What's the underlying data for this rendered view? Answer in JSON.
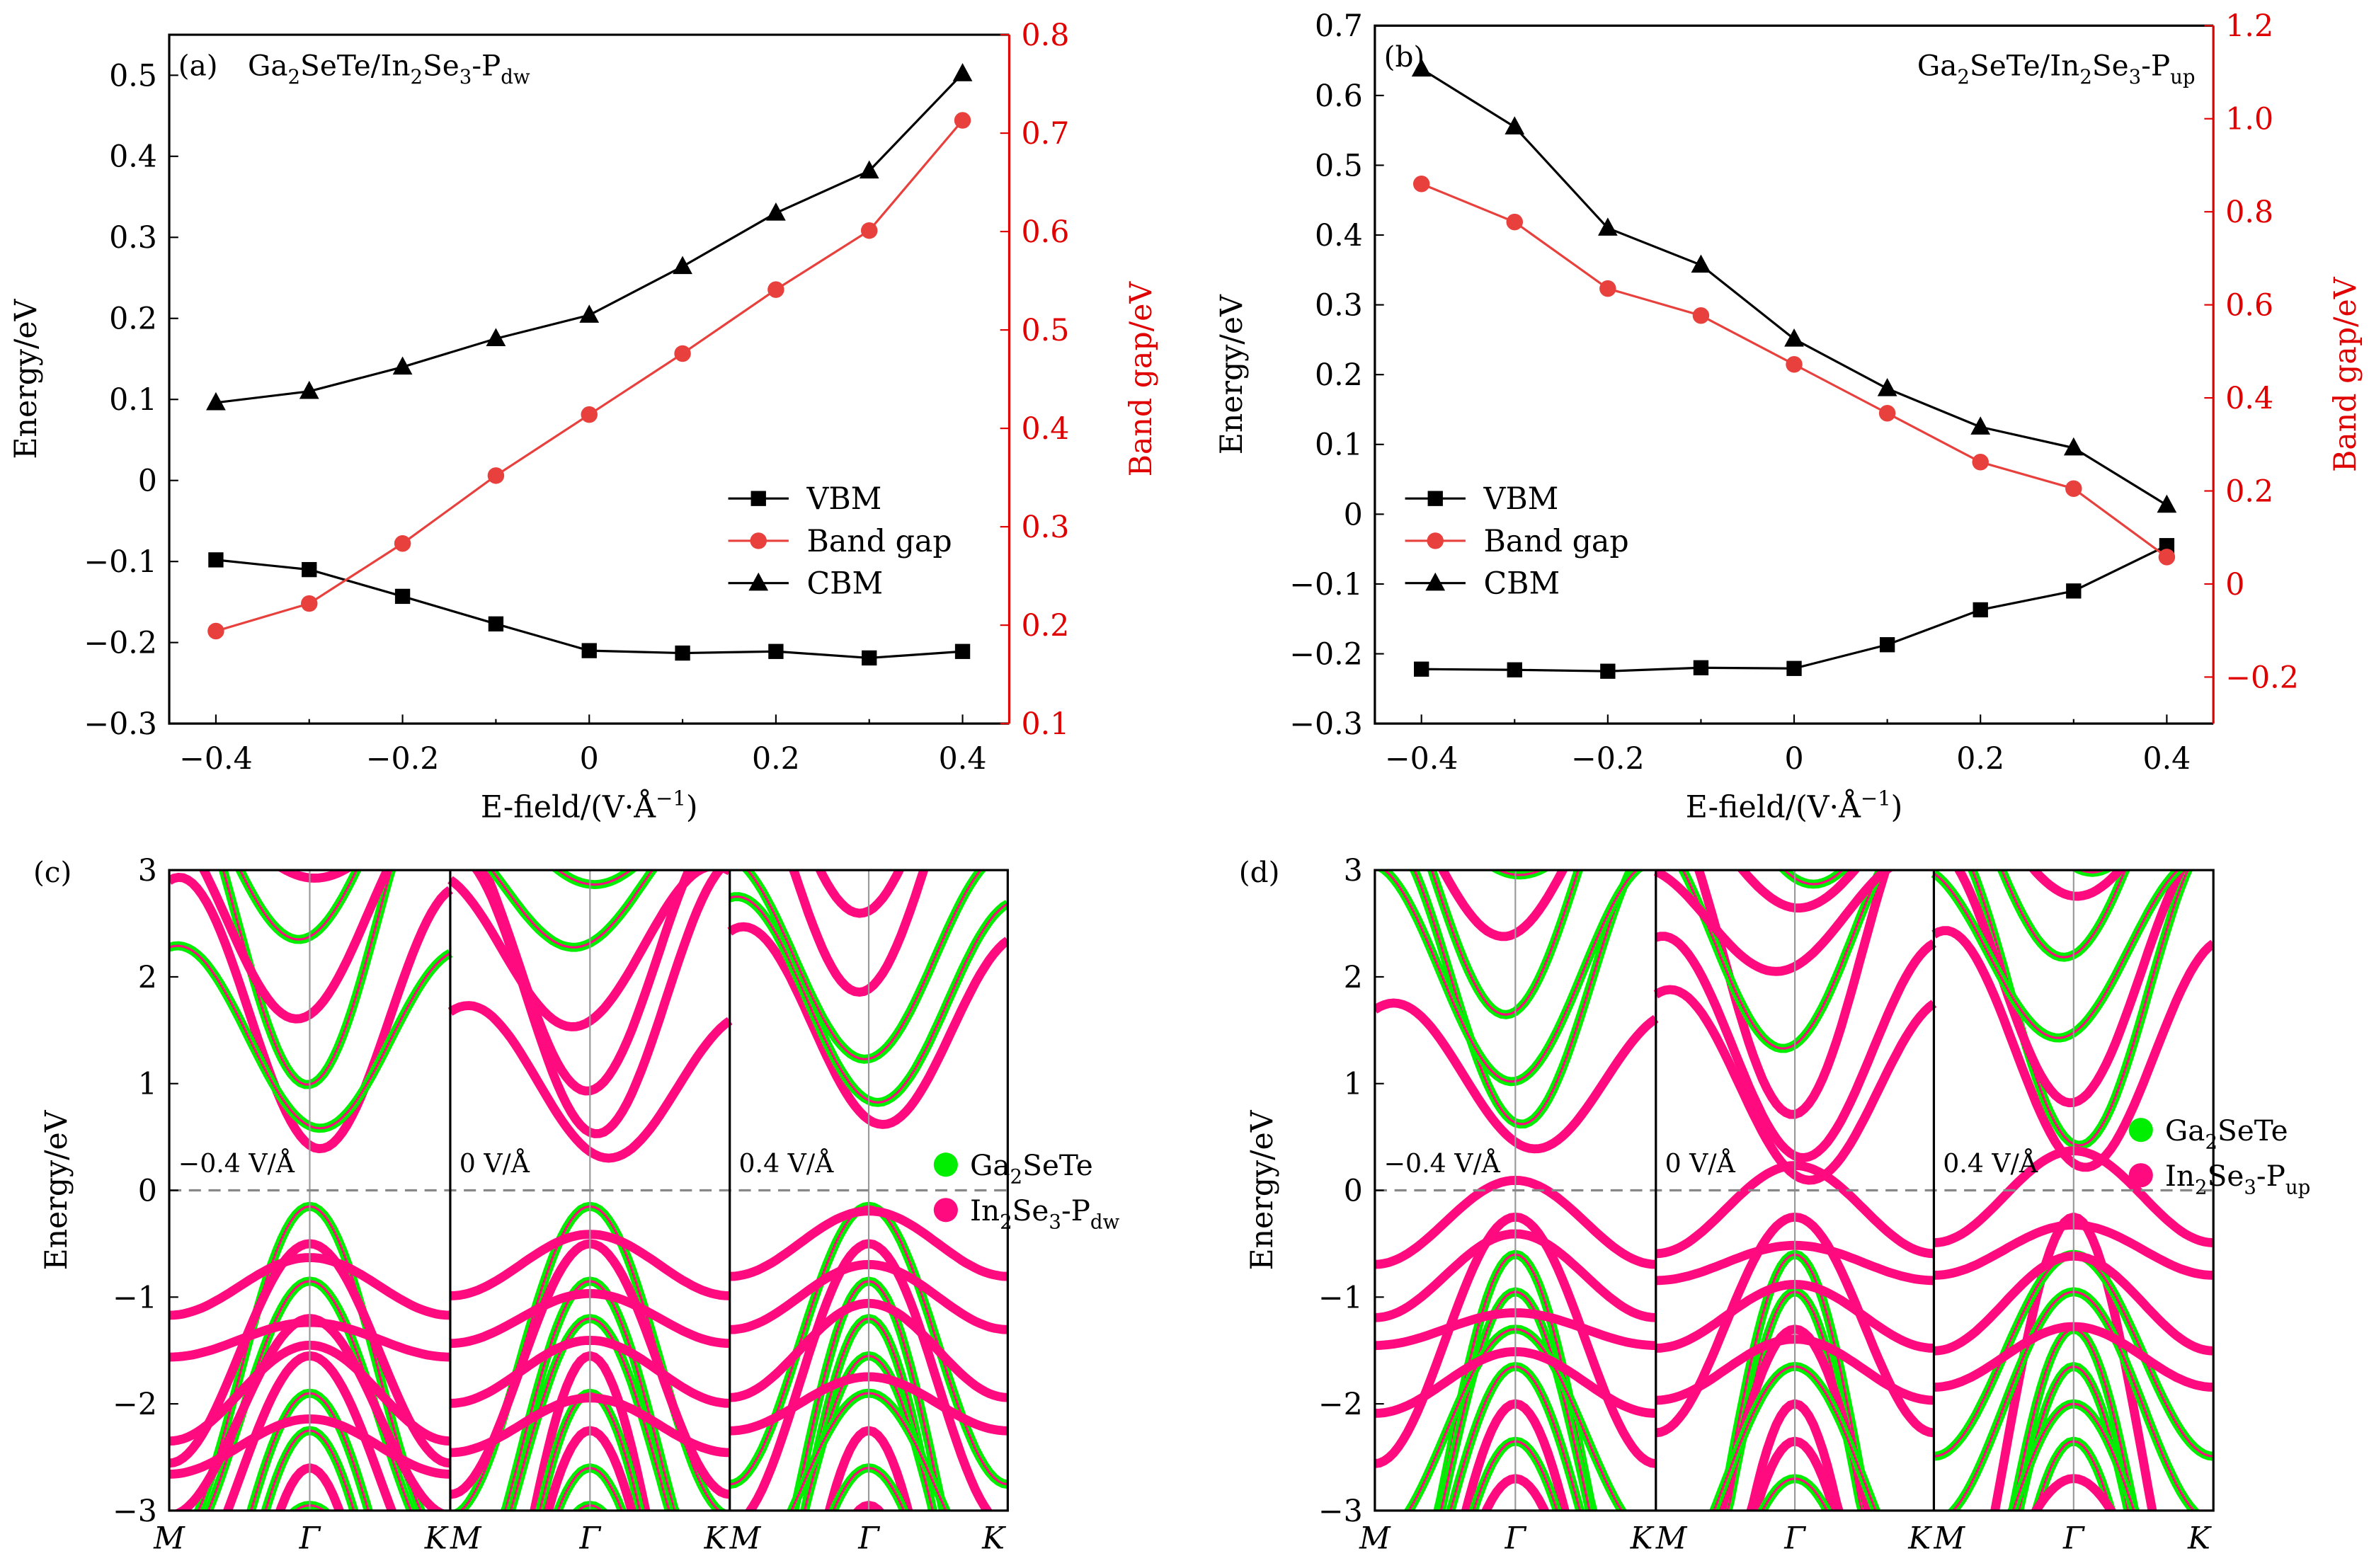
{
  "colors": {
    "vbm": "#000000",
    "cbm": "#000000",
    "band_gap": "#e8403c",
    "right_axis": "#e00000",
    "ga2sete": "#00ee00",
    "in2se3": "#ff0a7f",
    "fermi_line": "#888888"
  },
  "chart_data": [
    {
      "panel": "(a)",
      "type": "line",
      "title_parts": [
        {
          "t": "Ga"
        },
        {
          "t": "2",
          "sub": true
        },
        {
          "t": "SeTe/In"
        },
        {
          "t": "2",
          "sub": true
        },
        {
          "t": "Se"
        },
        {
          "t": "3",
          "sub": true
        },
        {
          "t": "-P"
        },
        {
          "t": "dw",
          "sub": true
        }
      ],
      "xlabel_parts": [
        {
          "t": "E-field/(V·Å"
        },
        {
          "t": "−1",
          "sup": true
        },
        {
          "t": ")"
        }
      ],
      "ylabel": "Energy/eV",
      "y2label": "Band gap/eV",
      "x": [
        -0.4,
        -0.3,
        -0.2,
        -0.1,
        0,
        0.1,
        0.2,
        0.3,
        0.4
      ],
      "xlim": [
        -0.45,
        0.45
      ],
      "ylim": [
        -0.3,
        0.55
      ],
      "y2lim": [
        0.1,
        0.8
      ],
      "xticks": [
        "−0.4",
        "−0.2",
        "0",
        "0.2",
        "0.4"
      ],
      "xtick_values": [
        -0.4,
        -0.2,
        0,
        0.2,
        0.4
      ],
      "yticks": [
        "−0.3",
        "−0.2",
        "−0.1",
        "0",
        "0.1",
        "0.2",
        "0.3",
        "0.4",
        "0.5"
      ],
      "ytick_values": [
        -0.3,
        -0.2,
        -0.1,
        0,
        0.1,
        0.2,
        0.3,
        0.4,
        0.5
      ],
      "y2ticks": [
        "0.1",
        "0.2",
        "0.3",
        "0.4",
        "0.5",
        "0.6",
        "0.7",
        "0.8"
      ],
      "y2tick_values": [
        0.1,
        0.2,
        0.3,
        0.4,
        0.5,
        0.6,
        0.7,
        0.8
      ],
      "legend_position": "center-right",
      "series": [
        {
          "name": "VBM",
          "axis": "left",
          "marker": "square",
          "values": [
            -0.098,
            -0.11,
            -0.143,
            -0.177,
            -0.21,
            -0.213,
            -0.211,
            -0.219,
            -0.211
          ]
        },
        {
          "name": "Band gap",
          "axis": "right",
          "marker": "circle",
          "values": [
            0.194,
            0.222,
            0.283,
            0.352,
            0.414,
            0.476,
            0.541,
            0.601,
            0.713
          ]
        },
        {
          "name": "CBM",
          "axis": "left",
          "marker": "triangle",
          "values": [
            0.096,
            0.11,
            0.14,
            0.175,
            0.204,
            0.264,
            0.33,
            0.382,
            0.502
          ]
        }
      ]
    },
    {
      "panel": "(b)",
      "type": "line",
      "title_parts": [
        {
          "t": "Ga"
        },
        {
          "t": "2",
          "sub": true
        },
        {
          "t": "SeTe/In"
        },
        {
          "t": "2",
          "sub": true
        },
        {
          "t": "Se"
        },
        {
          "t": "3",
          "sub": true
        },
        {
          "t": "-P"
        },
        {
          "t": "up",
          "sub": true
        }
      ],
      "xlabel_parts": [
        {
          "t": "E-field/(V·Å"
        },
        {
          "t": "−1",
          "sup": true
        },
        {
          "t": ")"
        }
      ],
      "ylabel": "Energy/eV",
      "y2label": "Band gap/eV",
      "x": [
        -0.4,
        -0.3,
        -0.2,
        -0.1,
        0,
        0.1,
        0.2,
        0.3,
        0.4
      ],
      "xlim": [
        -0.45,
        0.45
      ],
      "ylim": [
        -0.3,
        0.7
      ],
      "y2lim": [
        -0.3,
        1.2
      ],
      "xticks": [
        "−0.4",
        "−0.2",
        "0",
        "0.2",
        "0.4"
      ],
      "xtick_values": [
        -0.4,
        -0.2,
        0,
        0.2,
        0.4
      ],
      "yticks": [
        "−0.3",
        "−0.2",
        "−0.1",
        "0",
        "0.1",
        "0.2",
        "0.3",
        "0.4",
        "0.5",
        "0.6",
        "0.7"
      ],
      "ytick_values": [
        -0.3,
        -0.2,
        -0.1,
        0,
        0.1,
        0.2,
        0.3,
        0.4,
        0.5,
        0.6,
        0.7
      ],
      "y2ticks": [
        "−0.2",
        "0",
        "0.2",
        "0.4",
        "0.6",
        "0.8",
        "1.0",
        "1.2"
      ],
      "y2tick_values": [
        -0.2,
        0,
        0.2,
        0.4,
        0.6,
        0.8,
        1.0,
        1.2
      ],
      "legend_position": "center-left",
      "series": [
        {
          "name": "VBM",
          "axis": "left",
          "marker": "square",
          "values": [
            -0.222,
            -0.223,
            -0.225,
            -0.22,
            -0.221,
            -0.187,
            -0.137,
            -0.11,
            -0.045
          ]
        },
        {
          "name": "Band gap",
          "axis": "right",
          "marker": "circle",
          "values": [
            0.86,
            0.778,
            0.635,
            0.577,
            0.472,
            0.367,
            0.262,
            0.205,
            0.058
          ]
        },
        {
          "name": "CBM",
          "axis": "left",
          "marker": "triangle",
          "values": [
            0.638,
            0.555,
            0.41,
            0.357,
            0.251,
            0.18,
            0.125,
            0.095,
            0.013
          ]
        }
      ]
    },
    {
      "panel": "(c)",
      "type": "line",
      "ylabel": "Energy/eV",
      "ylim": [
        -3,
        3
      ],
      "yticks": [
        "−3",
        "−2",
        "−1",
        "0",
        "1",
        "2",
        "3"
      ],
      "ytick_values": [
        -3,
        -2,
        -1,
        0,
        1,
        2,
        3
      ],
      "kpath": [
        "M",
        "Γ",
        "K",
        "M",
        "Γ",
        "K",
        "M",
        "Γ",
        "K"
      ],
      "field_labels": [
        "−0.4 V/Å",
        "0 V/Å",
        "0.4 V/Å"
      ],
      "legend": [
        {
          "name_parts": [
            {
              "t": "Ga"
            },
            {
              "t": "2",
              "sub": true
            },
            {
              "t": "SeTe"
            }
          ],
          "color": "#00ee00"
        },
        {
          "name_parts": [
            {
              "t": "In"
            },
            {
              "t": "2",
              "sub": true
            },
            {
              "t": "Se"
            },
            {
              "t": "3",
              "sub": true
            },
            {
              "t": "-P"
            },
            {
              "t": "dw",
              "sub": true
            }
          ],
          "color": "#ff0a7f"
        }
      ],
      "legend_position": "right"
    },
    {
      "panel": "(d)",
      "type": "line",
      "ylabel": "Energy/eV",
      "ylim": [
        -3,
        3
      ],
      "yticks": [
        "−3",
        "−2",
        "−1",
        "0",
        "1",
        "2",
        "3"
      ],
      "ytick_values": [
        -3,
        -2,
        -1,
        0,
        1,
        2,
        3
      ],
      "kpath": [
        "M",
        "Γ",
        "K",
        "M",
        "Γ",
        "K",
        "M",
        "Γ",
        "K"
      ],
      "field_labels": [
        "−0.4 V/Å",
        "0 V/Å",
        "0.4 V/Å"
      ],
      "legend": [
        {
          "name_parts": [
            {
              "t": "Ga"
            },
            {
              "t": "2",
              "sub": true
            },
            {
              "t": "SeTe"
            }
          ],
          "color": "#00ee00"
        },
        {
          "name_parts": [
            {
              "t": "In"
            },
            {
              "t": "2",
              "sub": true
            },
            {
              "t": "Se"
            },
            {
              "t": "3",
              "sub": true
            },
            {
              "t": "-P"
            },
            {
              "t": "up",
              "sub": true
            }
          ],
          "color": "#ff0a7f"
        }
      ],
      "legend_position": "right"
    }
  ]
}
